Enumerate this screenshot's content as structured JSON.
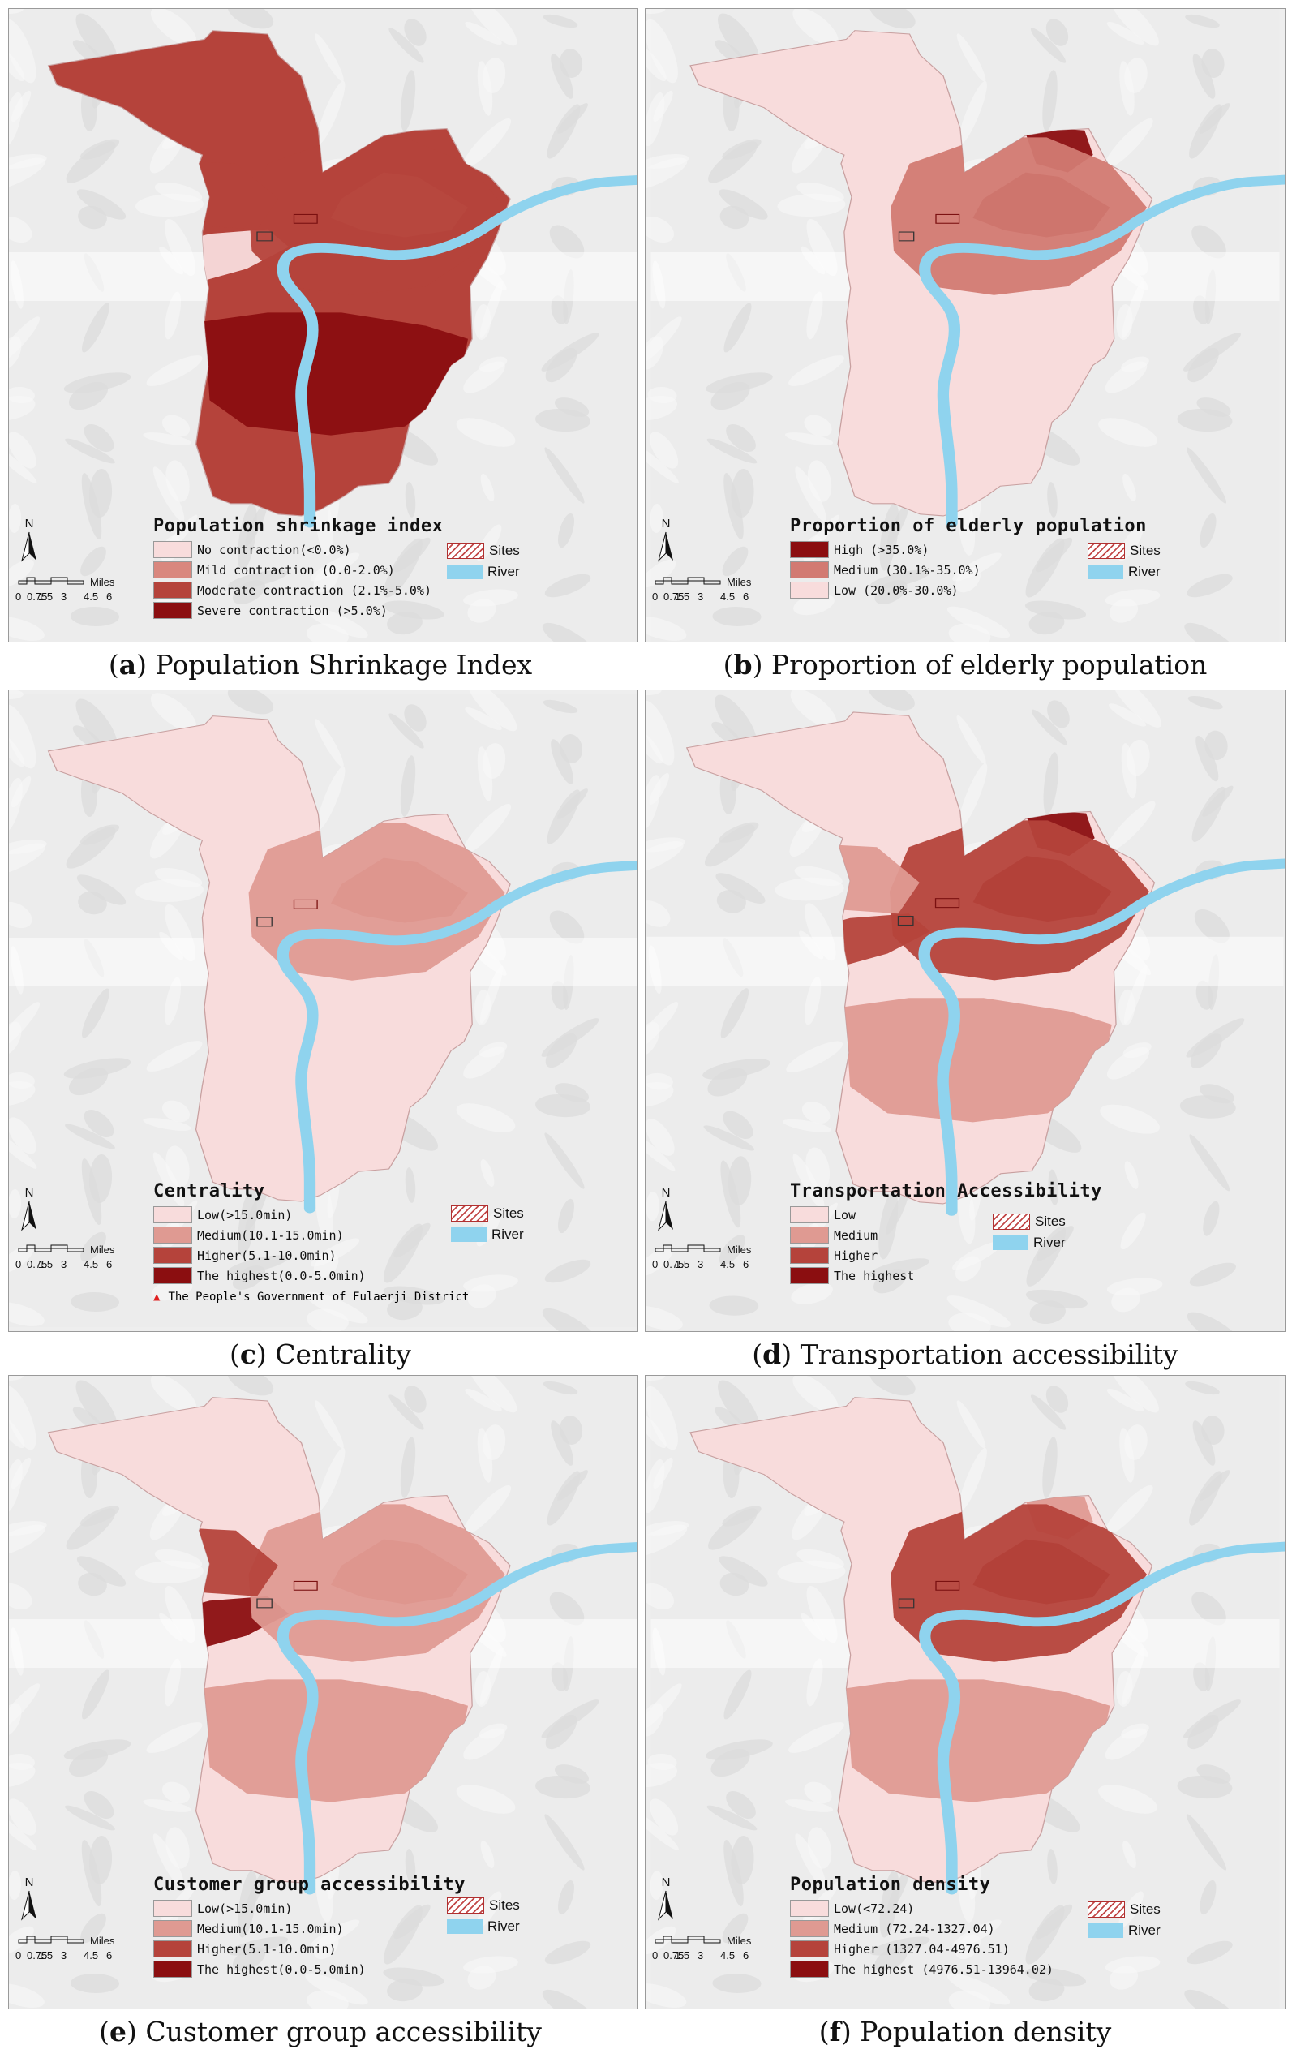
{
  "panels": [
    {
      "letter": "a",
      "caption": "Population Shrinkage Index",
      "legend_title": "Population shrinkage index",
      "items": [
        {
          "label": "No contraction(<0.0%)",
          "color": "#f8dcdc"
        },
        {
          "label": "Mild contraction (0.0-2.0%)",
          "color": "#d9877e"
        },
        {
          "label": "Moderate contraction (2.1%-5.0%)",
          "color": "#b5433b"
        },
        {
          "label": "Severe contraction (>5.0%)",
          "color": "#8b0e10"
        }
      ],
      "base_color": "#b5433b"
    },
    {
      "letter": "b",
      "caption": "Proportion of elderly population",
      "legend_title": "Proportion of elderly population",
      "items": [
        {
          "label": "High (>35.0%)",
          "color": "#8b0e10"
        },
        {
          "label": "Medium (30.1%-35.0%)",
          "color": "#d27a72"
        },
        {
          "label": "Low (20.0%-30.0%)",
          "color": "#f8dcdc"
        }
      ],
      "base_color": "#f8dcdc"
    },
    {
      "letter": "c",
      "caption": "Centrality",
      "legend_title": "Centrality",
      "items": [
        {
          "label": "Low(>15.0min)",
          "color": "#f8dcdc"
        },
        {
          "label": "Medium(10.1-15.0min)",
          "color": "#df9a92"
        },
        {
          "label": "Higher(5.1-10.0min)",
          "color": "#b5433b"
        },
        {
          "label": "The highest(0.0-5.0min)",
          "color": "#8b0e10"
        }
      ],
      "extra": "The People's Government of Fulaerji District",
      "base_color": "#f8dcdc"
    },
    {
      "letter": "d",
      "caption": "Transportation accessibility",
      "legend_title": "Transportation Accessibility",
      "items": [
        {
          "label": "Low",
          "color": "#f8dcdc"
        },
        {
          "label": "Medium",
          "color": "#df9a92"
        },
        {
          "label": "Higher",
          "color": "#b5433b"
        },
        {
          "label": "The highest",
          "color": "#8b0e10"
        }
      ],
      "base_color": "#f8dcdc"
    },
    {
      "letter": "e",
      "caption": "Customer group accessibility",
      "legend_title": "Customer group accessibility",
      "items": [
        {
          "label": "Low(>15.0min)",
          "color": "#f8dcdc"
        },
        {
          "label": "Medium(10.1-15.0min)",
          "color": "#df9a92"
        },
        {
          "label": "Higher(5.1-10.0min)",
          "color": "#b5433b"
        },
        {
          "label": "The highest(0.0-5.0min)",
          "color": "#8b0e10"
        }
      ],
      "base_color": "#f8dcdc"
    },
    {
      "letter": "f",
      "caption": "Population density",
      "legend_title": "Population density",
      "items": [
        {
          "label": "Low(<72.24)",
          "color": "#f8dcdc"
        },
        {
          "label": "Medium (72.24-1327.04)",
          "color": "#df9a92"
        },
        {
          "label": "Higher (1327.04-4976.51)",
          "color": "#b5433b"
        },
        {
          "label": "The highest (4976.51-13964.02)",
          "color": "#8b0e10"
        }
      ],
      "base_color": "#f8dcdc"
    }
  ],
  "common": {
    "north": "N",
    "sites": "Sites",
    "river": "River",
    "scale_unit": "Miles",
    "scale_ticks": [
      "0",
      "0.75",
      "1.5",
      "3",
      "4.5",
      "6"
    ],
    "river_color": "#8fd3ee"
  }
}
